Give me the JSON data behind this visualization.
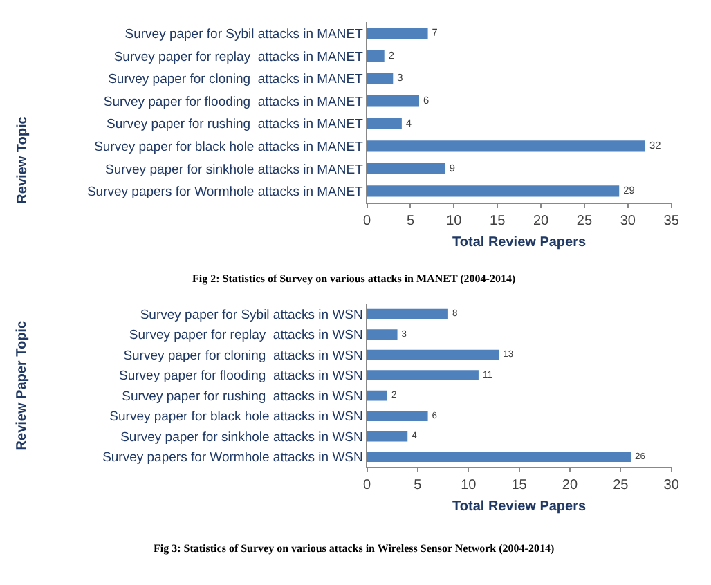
{
  "chart_data": [
    {
      "type": "bar",
      "orientation": "horizontal",
      "categories": [
        "Survey paper for Sybil attacks in MANET",
        "Survey paper for replay  attacks in MANET",
        "Survey paper for cloning  attacks in MANET",
        "Survey paper for flooding  attacks in MANET",
        "Survey paper for rushing  attacks in MANET",
        "Survey paper for black hole attacks in MANET",
        "Survey paper for sinkhole attacks in MANET",
        "Survey papers for Wormhole attacks in MANET"
      ],
      "values": [
        7,
        2,
        3,
        6,
        4,
        32,
        9,
        29
      ],
      "color": "#4f81bd",
      "data_labels": true,
      "xlim": [
        0,
        35
      ],
      "xticks": [
        0,
        5,
        10,
        15,
        20,
        25,
        30,
        35
      ],
      "xlabel": "Total Review Papers",
      "ylabel": "Review Topic",
      "annotations": [
        "Fig 2: Statistics of Survey on various attacks in MANET (2004-2014)"
      ]
    },
    {
      "type": "bar",
      "orientation": "horizontal",
      "categories": [
        "Survey paper for Sybil attacks in WSN",
        "Survey paper for replay  attacks in WSN",
        "Survey paper for cloning  attacks in WSN",
        "Survey paper for flooding  attacks in WSN",
        "Survey paper for rushing  attacks in WSN",
        "Survey paper for black hole attacks in WSN",
        "Survey paper for sinkhole attacks in WSN",
        "Survey papers for Wormhole attacks in WSN"
      ],
      "values": [
        8,
        3,
        13,
        11,
        2,
        6,
        4,
        26
      ],
      "color": "#4f81bd",
      "data_labels": true,
      "xlim": [
        0,
        30
      ],
      "xticks": [
        0,
        5,
        10,
        15,
        20,
        25,
        30
      ],
      "xlabel": "Total Review Papers",
      "ylabel": "Review Paper Topic",
      "annotations": [
        "Fig 3: Statistics of Survey on various attacks in Wireless Sensor Network (2004-2014)"
      ]
    }
  ]
}
